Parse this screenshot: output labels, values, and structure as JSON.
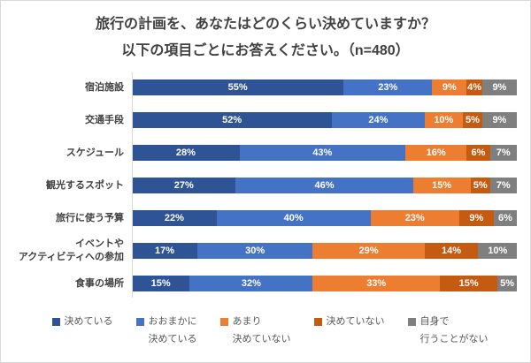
{
  "title": {
    "line1": "旅行の計画を、あなたはどのくらい決めていますか？",
    "line2": "以下の項目ごとにお答えください。（n=480）"
  },
  "chart_data": {
    "type": "bar",
    "stacked": true,
    "orientation": "horizontal",
    "unit": "%",
    "xlim": [
      0,
      100
    ],
    "grid": false,
    "legend_position": "bottom",
    "title": "旅行の計画を、あなたはどのくらい決めていますか？ 以下の項目ごとにお答えください。（n=480）",
    "sample_size_label": "n=480",
    "categories": [
      "宿泊施設",
      "交通手段",
      "スケジュール",
      "観光するスポット",
      "旅行に使う予算",
      "イベントやアクティビティへの参加",
      "食事の場所"
    ],
    "category_lines": [
      [
        "宿泊施設"
      ],
      [
        "交通手段"
      ],
      [
        "スケジュール"
      ],
      [
        "観光するスポット"
      ],
      [
        "旅行に使う予算"
      ],
      [
        "イベントや",
        "アクティビティへの参加"
      ],
      [
        "食事の場所"
      ]
    ],
    "series": [
      {
        "name": "決めている",
        "color": "#2F5496",
        "values": [
          55,
          52,
          28,
          27,
          22,
          17,
          15
        ]
      },
      {
        "name": "おおまかに決めている",
        "color": "#4472C4",
        "values": [
          23,
          24,
          43,
          46,
          40,
          30,
          32
        ]
      },
      {
        "name": "あまり決めていない",
        "color": "#ED7D31",
        "values": [
          9,
          10,
          16,
          15,
          23,
          29,
          33
        ]
      },
      {
        "name": "決めていない",
        "color": "#C55A11",
        "values": [
          4,
          5,
          6,
          5,
          9,
          14,
          15
        ]
      },
      {
        "name": "自身で行うことがない",
        "color": "#7F7F7F",
        "values": [
          9,
          9,
          7,
          7,
          6,
          10,
          5
        ]
      }
    ],
    "legend": [
      {
        "lines": [
          "決めている"
        ],
        "color": "#2F5496"
      },
      {
        "lines": [
          "おおまかに",
          "決めている"
        ],
        "color": "#4472C4"
      },
      {
        "lines": [
          "あまり",
          "決めていない"
        ],
        "color": "#ED7D31"
      },
      {
        "lines": [
          "決めていない"
        ],
        "color": "#C55A11"
      },
      {
        "lines": [
          "自身で",
          "行うことがない"
        ],
        "color": "#7F7F7F"
      }
    ]
  },
  "colors": {
    "title_text": "#404040",
    "category_text": "#404040",
    "legend_text": "#595959",
    "axis_line": "#d9d9d9",
    "background": "#ffffff"
  }
}
